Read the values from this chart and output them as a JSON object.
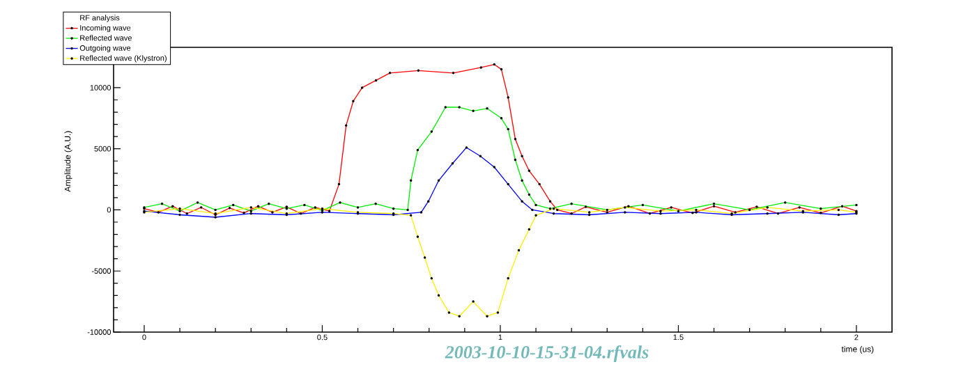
{
  "chart_data": {
    "type": "line",
    "xlabel": "time (us)",
    "ylabel": "Amplitude (A.U.)",
    "legend_title": "RF analysis",
    "legend": "top left",
    "marker": "circle",
    "grid": false,
    "xlim": [
      -0.086,
      2.1
    ],
    "ylim": [
      -10000,
      13300
    ],
    "xticks": [
      0,
      0.5,
      1,
      1.5,
      2
    ],
    "yticks": [
      -10000,
      -5000,
      0,
      5000,
      10000
    ],
    "annotations": [
      "2003-10-10-15-31-04.rfvals"
    ],
    "series": [
      {
        "name": "Incoming wave",
        "color": "#ff0000",
        "x": [
          0,
          0.04,
          0.08,
          0.12,
          0.16,
          0.2,
          0.24,
          0.28,
          0.32,
          0.36,
          0.4,
          0.44,
          0.48,
          0.52,
          0.547,
          0.567,
          0.587,
          0.612,
          0.651,
          0.69,
          0.77,
          0.868,
          0.946,
          0.983,
          1.003,
          1.022,
          1.042,
          1.061,
          1.081,
          1.11,
          1.14,
          1.16,
          1.2,
          1.24,
          1.3,
          1.36,
          1.42,
          1.48,
          1.54,
          1.6,
          1.66,
          1.72,
          1.78,
          1.84,
          1.9,
          1.96,
          2.0
        ],
        "values": [
          100,
          -200,
          300,
          -300,
          200,
          -400,
          150,
          -250,
          300,
          -200,
          250,
          -300,
          200,
          -100,
          2100,
          6900,
          8900,
          10000,
          10600,
          11200,
          11400,
          11200,
          11650,
          11900,
          11500,
          9200,
          5800,
          4400,
          3200,
          2100,
          700,
          0,
          -300,
          250,
          -200,
          300,
          -300,
          200,
          -250,
          300,
          -200,
          250,
          -300,
          200,
          -250,
          300,
          -100
        ]
      },
      {
        "name": "Reflected wave",
        "color": "#00ee00",
        "x": [
          0,
          0.05,
          0.1,
          0.15,
          0.2,
          0.25,
          0.3,
          0.35,
          0.4,
          0.45,
          0.5,
          0.55,
          0.6,
          0.65,
          0.7,
          0.74,
          0.749,
          0.768,
          0.807,
          0.846,
          0.885,
          0.924,
          0.963,
          1.003,
          1.022,
          1.042,
          1.061,
          1.081,
          1.1,
          1.14,
          1.2,
          1.3,
          1.4,
          1.5,
          1.6,
          1.7,
          1.8,
          1.9,
          2.0
        ],
        "values": [
          200,
          500,
          -100,
          600,
          0,
          400,
          -100,
          500,
          100,
          400,
          -50,
          600,
          200,
          500,
          100,
          0,
          2400,
          4900,
          6400,
          8400,
          8400,
          8100,
          8300,
          7500,
          6600,
          4100,
          2400,
          1250,
          400,
          100,
          500,
          0,
          400,
          -100,
          500,
          0,
          600,
          100,
          400
        ]
      },
      {
        "name": "Outgoing wave",
        "color": "#0000ff",
        "x": [
          0,
          0.1,
          0.2,
          0.3,
          0.4,
          0.5,
          0.6,
          0.7,
          0.778,
          0.798,
          0.827,
          0.866,
          0.905,
          0.944,
          0.983,
          1.022,
          1.061,
          1.09,
          1.15,
          1.25,
          1.35,
          1.45,
          1.55,
          1.65,
          1.75,
          1.85,
          1.95,
          2.0
        ],
        "values": [
          -100,
          -400,
          -600,
          -300,
          -400,
          -200,
          -300,
          -400,
          -200,
          700,
          2400,
          3800,
          5100,
          4400,
          3500,
          2100,
          700,
          0,
          -300,
          -400,
          -200,
          -300,
          -200,
          -400,
          -300,
          -200,
          -400,
          -300
        ]
      },
      {
        "name": "Reflected wave (Klystron)",
        "color": "#ffee00",
        "x": [
          0,
          0.1,
          0.2,
          0.3,
          0.4,
          0.5,
          0.6,
          0.7,
          0.749,
          0.768,
          0.788,
          0.807,
          0.827,
          0.856,
          0.885,
          0.924,
          0.963,
          0.993,
          1.022,
          1.052,
          1.081,
          1.1,
          1.15,
          1.25,
          1.35,
          1.45,
          1.55,
          1.65,
          1.75,
          1.85,
          1.95,
          2.0
        ],
        "values": [
          -200,
          100,
          -300,
          200,
          -300,
          100,
          -200,
          -300,
          -450,
          -2200,
          -3900,
          -5600,
          -7000,
          -8400,
          -8700,
          -7500,
          -8700,
          -8400,
          -5600,
          -3300,
          -1600,
          -450,
          100,
          -200,
          200,
          -100,
          0,
          -300,
          200,
          -100,
          0,
          -200
        ]
      }
    ]
  }
}
